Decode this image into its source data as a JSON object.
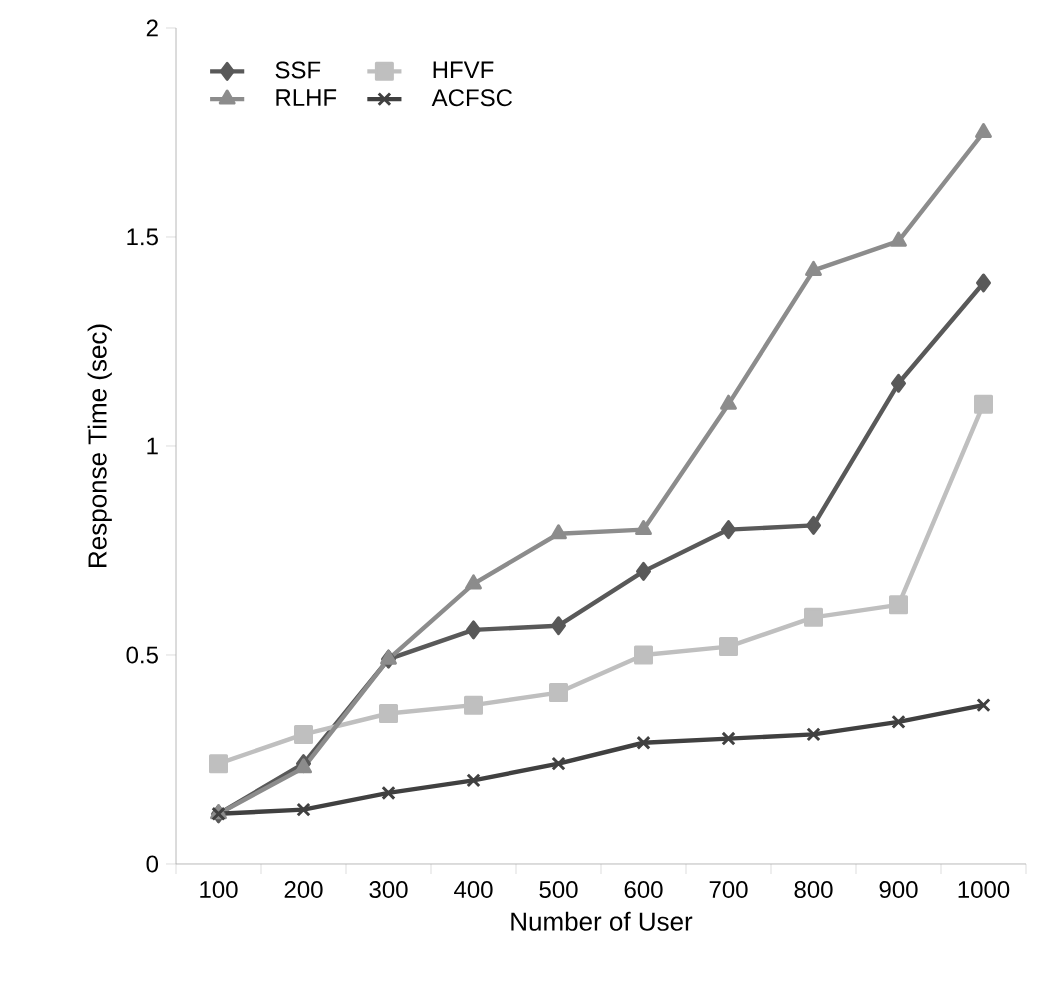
{
  "chart_data": {
    "type": "line",
    "xlabel": "Number of User",
    "ylabel": "Response Time (sec)",
    "categories": [
      "100",
      "200",
      "300",
      "400",
      "500",
      "600",
      "700",
      "800",
      "900",
      "1000"
    ],
    "series": [
      {
        "name": "SSF",
        "color": "#595959",
        "marker": "diamond",
        "values": [
          0.12,
          0.24,
          0.49,
          0.56,
          0.57,
          0.7,
          0.8,
          0.81,
          1.15,
          1.39
        ]
      },
      {
        "name": "HFVF",
        "color": "#bfbfbf",
        "marker": "square",
        "values": [
          0.24,
          0.31,
          0.36,
          0.38,
          0.41,
          0.5,
          0.52,
          0.59,
          0.62,
          1.1
        ]
      },
      {
        "name": "RLHF",
        "color": "#8c8c8c",
        "marker": "triangle",
        "values": [
          0.12,
          0.23,
          0.49,
          0.67,
          0.79,
          0.8,
          1.1,
          1.42,
          1.49,
          1.75
        ]
      },
      {
        "name": "ACFSC",
        "color": "#404040",
        "marker": "cross",
        "values": [
          0.12,
          0.13,
          0.17,
          0.2,
          0.24,
          0.29,
          0.3,
          0.31,
          0.34,
          0.38
        ]
      }
    ],
    "ylim": [
      0,
      2
    ],
    "yticks": [
      0,
      0.5,
      1,
      1.5,
      2
    ],
    "grid": false,
    "legend": "top left",
    "line_style": "solid"
  }
}
